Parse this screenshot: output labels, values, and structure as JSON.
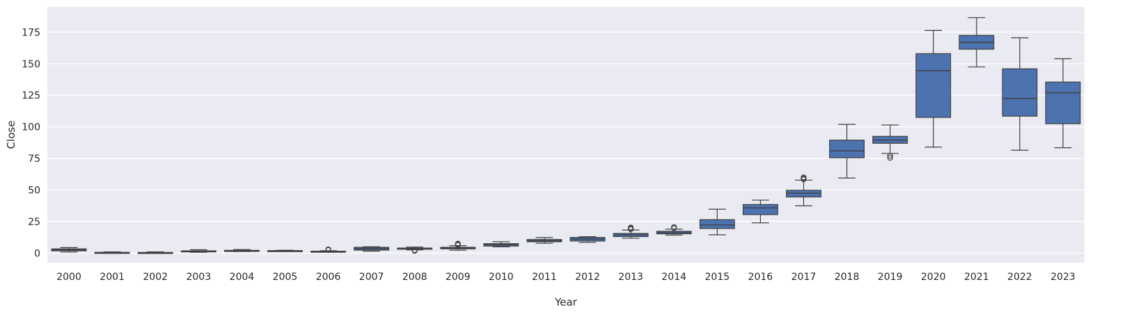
{
  "chart_data": {
    "type": "box",
    "xlabel": "Year",
    "ylabel": "Close",
    "ylim": [
      -7.5,
      195
    ],
    "yticks": [
      0,
      25,
      50,
      75,
      100,
      125,
      150,
      175
    ],
    "grid": true,
    "colors": {
      "background": "#eaeaf2",
      "grid": "#ffffff",
      "box": "#4c72b0",
      "line": "#3f3f3f"
    },
    "categories": [
      "2000",
      "2001",
      "2002",
      "2003",
      "2004",
      "2005",
      "2006",
      "2007",
      "2008",
      "2009",
      "2010",
      "2011",
      "2012",
      "2013",
      "2014",
      "2015",
      "2016",
      "2017",
      "2018",
      "2019",
      "2020",
      "2021",
      "2022",
      "2023"
    ],
    "boxes": [
      {
        "whislo": 0.8,
        "q1": 1.8,
        "med": 2.6,
        "q3": 3.4,
        "whishi": 4.4,
        "fliers": []
      },
      {
        "whislo": 0.2,
        "q1": 0.35,
        "med": 0.45,
        "q3": 0.6,
        "whishi": 1.0,
        "fliers": []
      },
      {
        "whislo": 0.2,
        "q1": 0.3,
        "med": 0.4,
        "q3": 0.55,
        "whishi": 1.0,
        "fliers": []
      },
      {
        "whislo": 0.7,
        "q1": 1.0,
        "med": 1.3,
        "q3": 1.8,
        "whishi": 2.7,
        "fliers": []
      },
      {
        "whislo": 1.3,
        "q1": 1.6,
        "med": 1.9,
        "q3": 2.2,
        "whishi": 2.8,
        "fliers": []
      },
      {
        "whislo": 1.4,
        "q1": 1.6,
        "med": 1.75,
        "q3": 2.0,
        "whishi": 2.3,
        "fliers": []
      },
      {
        "whislo": 0.9,
        "q1": 1.1,
        "med": 1.3,
        "q3": 1.5,
        "whishi": 1.9,
        "fliers": [
          2.5,
          3.0
        ]
      },
      {
        "whislo": 1.6,
        "q1": 2.4,
        "med": 3.5,
        "q3": 4.6,
        "whishi": 5.0,
        "fliers": []
      },
      {
        "whislo": 2.6,
        "q1": 3.1,
        "med": 3.6,
        "q3": 4.0,
        "whishi": 4.8,
        "fliers": [
          1.8,
          2.3
        ]
      },
      {
        "whislo": 2.3,
        "q1": 3.4,
        "med": 4.0,
        "q3": 4.6,
        "whishi": 5.9,
        "fliers": [
          6.6,
          7.0,
          7.5
        ]
      },
      {
        "whislo": 5.0,
        "q1": 5.6,
        "med": 6.7,
        "q3": 7.5,
        "whishi": 9.0,
        "fliers": []
      },
      {
        "whislo": 7.8,
        "q1": 9.0,
        "med": 9.8,
        "q3": 10.8,
        "whishi": 12.3,
        "fliers": []
      },
      {
        "whislo": 8.5,
        "q1": 9.6,
        "med": 11.2,
        "q3": 12.4,
        "whishi": 13.0,
        "fliers": []
      },
      {
        "whislo": 11.8,
        "q1": 13.1,
        "med": 14.4,
        "q3": 15.6,
        "whishi": 18.3,
        "fliers": [
          19.0,
          19.7,
          20.3
        ]
      },
      {
        "whislo": 14.3,
        "q1": 15.3,
        "med": 16.2,
        "q3": 17.3,
        "whishi": 19.0,
        "fliers": [
          19.8,
          20.6
        ]
      },
      {
        "whislo": 14.5,
        "q1": 19.5,
        "med": 22.3,
        "q3": 26.5,
        "whishi": 34.8,
        "fliers": []
      },
      {
        "whislo": 24.0,
        "q1": 30.5,
        "med": 35.8,
        "q3": 38.5,
        "whishi": 42.0,
        "fliers": []
      },
      {
        "whislo": 37.5,
        "q1": 44.5,
        "med": 47.5,
        "q3": 49.8,
        "whishi": 57.8,
        "fliers": [
          58.5,
          59.2,
          60.0
        ]
      },
      {
        "whislo": 59.5,
        "q1": 75.5,
        "med": 81.0,
        "q3": 89.5,
        "whishi": 102.0,
        "fliers": []
      },
      {
        "whislo": 79.0,
        "q1": 87.0,
        "med": 89.5,
        "q3": 92.5,
        "whishi": 101.5,
        "fliers": [
          75.5,
          77.0
        ]
      },
      {
        "whislo": 84.0,
        "q1": 107.5,
        "med": 144.5,
        "q3": 158.0,
        "whishi": 176.5,
        "fliers": []
      },
      {
        "whislo": 147.5,
        "q1": 161.5,
        "med": 167.0,
        "q3": 172.5,
        "whishi": 186.5,
        "fliers": []
      },
      {
        "whislo": 81.5,
        "q1": 108.5,
        "med": 122.5,
        "q3": 146.0,
        "whishi": 170.5,
        "fliers": []
      },
      {
        "whislo": 83.5,
        "q1": 102.5,
        "med": 127.0,
        "q3": 135.5,
        "whishi": 154.0,
        "fliers": []
      }
    ]
  }
}
